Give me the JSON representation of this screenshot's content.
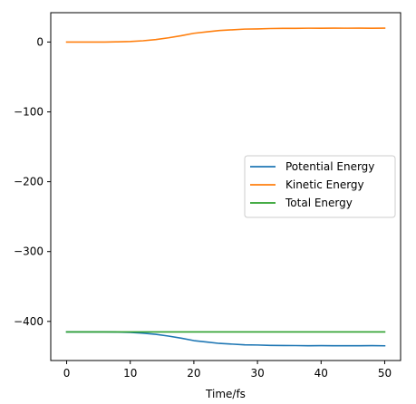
{
  "chart_data": {
    "type": "line",
    "title": "",
    "xlabel": "Time/fs",
    "ylabel": "",
    "xlim": [
      -2.5,
      52.5
    ],
    "ylim": [
      -456,
      42
    ],
    "xticks": [
      0,
      10,
      20,
      30,
      40,
      50
    ],
    "yticks": [
      0,
      -100,
      -200,
      -300,
      -400
    ],
    "grid": false,
    "legend_position": "center-right",
    "x": [
      0,
      2,
      4,
      6,
      8,
      10,
      12,
      14,
      16,
      18,
      20,
      22,
      24,
      26,
      28,
      30,
      32,
      34,
      36,
      38,
      40,
      42,
      44,
      46,
      48,
      50
    ],
    "series": [
      {
        "name": "Potential Energy",
        "color": "#1f77b4",
        "values": [
          -415,
          -415,
          -415,
          -415,
          -415.3,
          -415.8,
          -416.8,
          -418.5,
          -421,
          -424,
          -427.5,
          -429.5,
          -431.5,
          -432.5,
          -433.5,
          -433.8,
          -434.3,
          -434.5,
          -434.6,
          -434.8,
          -434.7,
          -434.9,
          -434.8,
          -434.9,
          -434.7,
          -434.9
        ]
      },
      {
        "name": "Kinetic Energy",
        "color": "#ff7f0e",
        "values": [
          0,
          0,
          0,
          0,
          0.3,
          0.8,
          1.8,
          3.5,
          6,
          9,
          12.5,
          14.5,
          16.5,
          17.5,
          18.5,
          18.8,
          19.3,
          19.5,
          19.6,
          19.8,
          19.7,
          19.9,
          19.8,
          19.9,
          19.7,
          19.9
        ]
      },
      {
        "name": "Total Energy",
        "color": "#2ca02c",
        "values": [
          -415,
          -415,
          -415,
          -415,
          -415,
          -415,
          -415,
          -415,
          -415,
          -415,
          -415,
          -415,
          -415,
          -415,
          -415,
          -415,
          -415,
          -415,
          -415,
          -415,
          -415,
          -415,
          -415,
          -415,
          -415,
          -415
        ]
      }
    ]
  }
}
